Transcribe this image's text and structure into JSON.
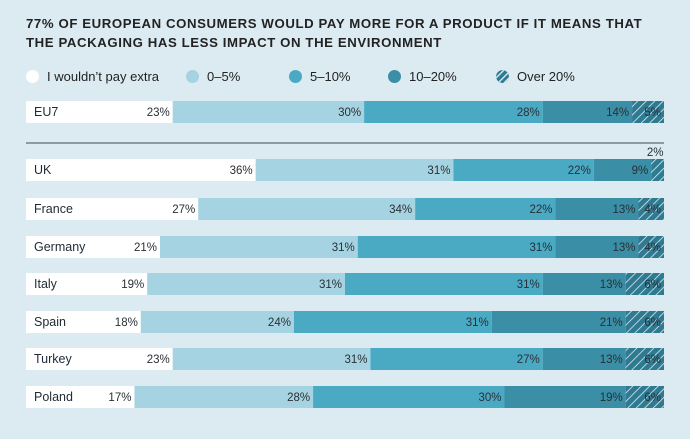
{
  "colors": {
    "none": "#ffffff",
    "low": "#a6d3e1",
    "mid": "#4aaac4",
    "high": "#3a8ea6",
    "top": "#2e7a91",
    "text": "#2a2f35"
  },
  "chart_data": {
    "type": "bar",
    "orientation": "horizontal-stacked",
    "title": "77% OF EUROPEAN CONSUMERS WOULD PAY MORE FOR A PRODUCT IF IT MEANS THAT THE PACKAGING HAS LESS IMPACT ON THE ENVIRONMENT",
    "legend_position": "top",
    "xlim": [
      0,
      100
    ],
    "series": [
      {
        "name": "I wouldn’t pay extra",
        "key": "none",
        "icon": "white-circle-icon"
      },
      {
        "name": "0–5%",
        "key": "low",
        "icon": "light-blue-circle-icon"
      },
      {
        "name": "5–10%",
        "key": "mid",
        "icon": "blue-circle-icon"
      },
      {
        "name": "10–20%",
        "key": "high",
        "icon": "dark-blue-circle-icon"
      },
      {
        "name": "Over 20%",
        "key": "top",
        "icon": "hatched-circle-icon"
      }
    ],
    "rows": [
      {
        "label": "EU7",
        "values": [
          23,
          30,
          28,
          14,
          5
        ]
      },
      {
        "label": "UK",
        "values": [
          36,
          31,
          22,
          9,
          2
        ]
      },
      {
        "label": "France",
        "values": [
          27,
          34,
          22,
          13,
          4
        ]
      },
      {
        "label": "Germany",
        "values": [
          21,
          31,
          31,
          13,
          4
        ]
      },
      {
        "label": "Italy",
        "values": [
          19,
          31,
          31,
          13,
          6
        ]
      },
      {
        "label": "Spain",
        "values": [
          18,
          24,
          31,
          21,
          6
        ]
      },
      {
        "label": "Turkey",
        "values": [
          23,
          31,
          27,
          13,
          6
        ]
      },
      {
        "label": "Poland",
        "values": [
          17,
          28,
          30,
          19,
          6
        ]
      }
    ]
  }
}
